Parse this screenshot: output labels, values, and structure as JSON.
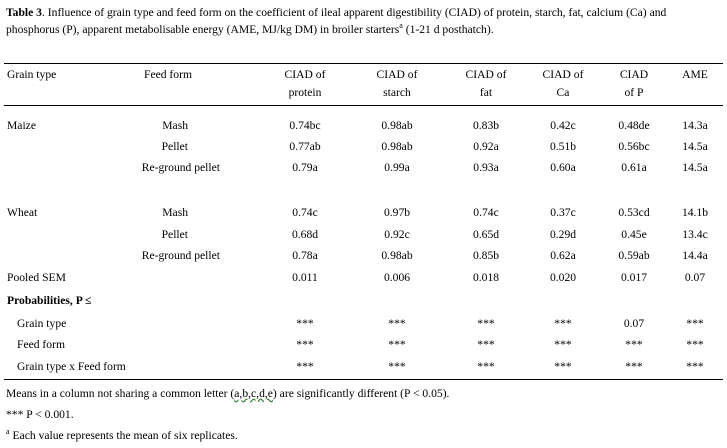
{
  "caption": {
    "label": "Table 3",
    "text_a": ". Influence of grain type and feed form on the coefficient of ileal apparent digestibility (CIAD) of protein, starch, fat, calcium (Ca) and phosphorus (P), apparent metabolisable energy (AME, MJ/kg DM) in broiler starters",
    "sup": "a",
    "text_b": " (1-21 d posthatch)."
  },
  "header": {
    "grain_type": "Grain type",
    "feed_form": "Feed form",
    "cols": [
      {
        "line1": "CIAD of",
        "line2": "protein"
      },
      {
        "line1": "CIAD of",
        "line2": "starch"
      },
      {
        "line1": "CIAD of",
        "line2": "fat"
      },
      {
        "line1": "CIAD of",
        "line2": "Ca"
      },
      {
        "line1": "CIAD",
        "line2": "of P"
      },
      {
        "line1": "AME",
        "line2": ""
      }
    ]
  },
  "groups": [
    {
      "grain": "Maize",
      "rows": [
        {
          "form": "Mash",
          "values": [
            "0.74bc",
            "0.98ab",
            "0.83b",
            "0.42c",
            "0.48de",
            "14.3a"
          ]
        },
        {
          "form": "Pellet",
          "values": [
            "0.77ab",
            "0.98ab",
            "0.92a",
            "0.51b",
            "0.56bc",
            "14.5a"
          ]
        },
        {
          "form": "Re-ground pellet",
          "values": [
            "0.79a",
            "0.99a",
            "0.93a",
            "0.60a",
            "0.61a",
            "14.5a"
          ]
        }
      ]
    },
    {
      "grain": "Wheat",
      "rows": [
        {
          "form": "Mash",
          "values": [
            "0.74c",
            "0.97b",
            "0.74c",
            "0.37c",
            "0.53cd",
            "14.1b"
          ]
        },
        {
          "form": "Pellet",
          "values": [
            "0.68d",
            "0.92c",
            "0.65d",
            "0.29d",
            "0.45e",
            "13.4c"
          ]
        },
        {
          "form": "Re-ground pellet",
          "values": [
            "0.78a",
            "0.98ab",
            "0.85b",
            "0.62a",
            "0.59ab",
            "14.4a"
          ]
        }
      ]
    }
  ],
  "pooled_sem": {
    "label": "Pooled SEM",
    "values": [
      "0.011",
      "0.006",
      "0.018",
      "0.020",
      "0.017",
      "0.07"
    ]
  },
  "probabilities": {
    "label": "Probabilities, P ≤",
    "rows": [
      {
        "label": "Grain type",
        "values": [
          "***",
          "***",
          "***",
          "***",
          "0.07",
          "***"
        ]
      },
      {
        "label": "Feed form",
        "values": [
          "***",
          "***",
          "***",
          "***",
          "***",
          "***"
        ]
      },
      {
        "label": "Grain type x Feed form",
        "values": [
          "***",
          "***",
          "***",
          "***",
          "***",
          "***"
        ]
      }
    ]
  },
  "footnotes": {
    "means_a": "Means in a column not sharing a common letter (",
    "means_letters": "a,b,c,d,e",
    "means_b": ") are significantly  different (P < 0.05).",
    "stars": "*** P < 0.001.",
    "sup": "a",
    "replicates": " Each value represents the mean of six replicates."
  }
}
